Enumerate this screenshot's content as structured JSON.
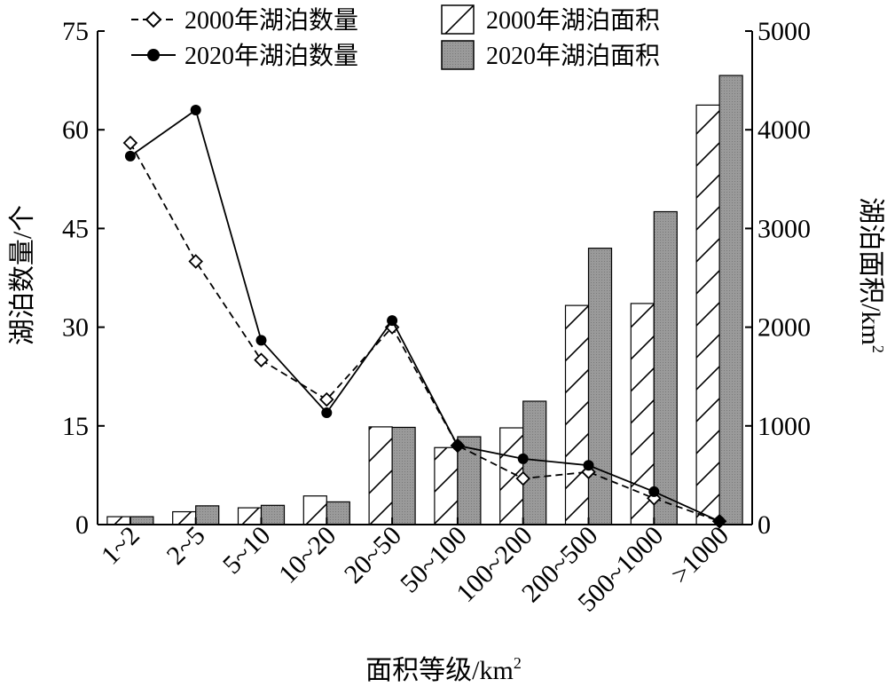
{
  "chart_data": {
    "type": "bar+line",
    "categories": [
      "1~2",
      "2~5",
      "5~10",
      "10~20",
      "20~50",
      "50~100",
      "100~200",
      "200~500",
      "500~1000",
      ">1000"
    ],
    "xlabel": "面积等级/km",
    "xlabel_sup": "2",
    "ylabel_left": "湖泊数量/个",
    "ylabel_right": "湖泊面积/km",
    "ylabel_right_sup": "2",
    "ylim_left": [
      0,
      75
    ],
    "yticks_left": [
      "0",
      "15",
      "30",
      "45",
      "60",
      "75"
    ],
    "ylim_right": [
      0,
      5000
    ],
    "yticks_right": [
      "0",
      "1000",
      "2000",
      "3000",
      "4000",
      "5000"
    ],
    "bar_series": [
      {
        "name": "2000年湖泊面积",
        "axis": "right",
        "pattern": "hatch",
        "values": [
          80,
          130,
          170,
          290,
          990,
          780,
          980,
          2220,
          2240,
          4250
        ]
      },
      {
        "name": "2020年湖泊面积",
        "axis": "right",
        "pattern": "gray",
        "values": [
          80,
          190,
          195,
          230,
          985,
          890,
          1250,
          2800,
          3170,
          4550
        ]
      }
    ],
    "line_series": [
      {
        "name": "2000年湖泊数量",
        "axis": "left",
        "style": "dashed",
        "marker": "open-diamond",
        "values": [
          58,
          40,
          25,
          19,
          30,
          12,
          7,
          8,
          4,
          0.5
        ]
      },
      {
        "name": "2020年湖泊数量",
        "axis": "left",
        "style": "solid",
        "marker": "filled-circle",
        "values": [
          56,
          63,
          28,
          17,
          31,
          12,
          10,
          9,
          5,
          0.5
        ]
      }
    ],
    "legend_position": "top",
    "grid": false
  }
}
